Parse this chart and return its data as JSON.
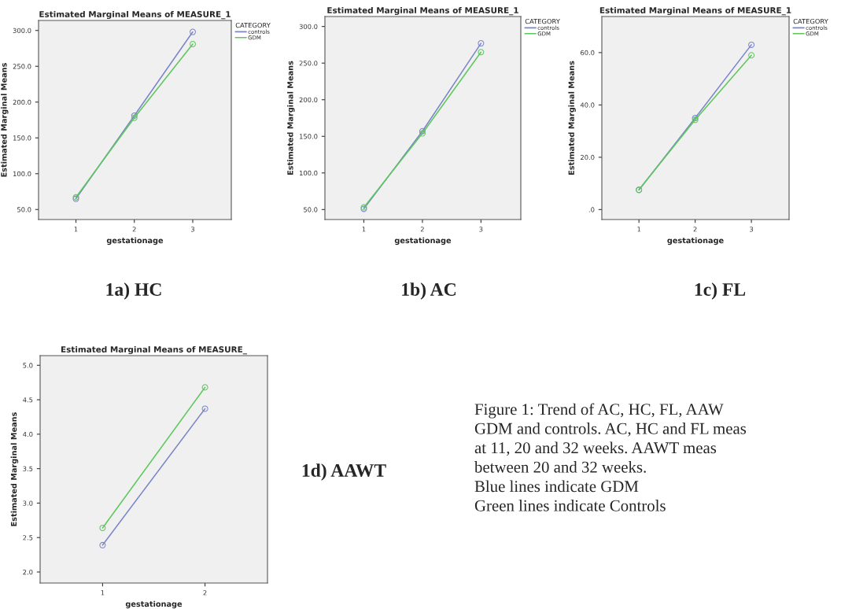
{
  "chart_data": [
    {
      "type": "line",
      "title": "Estimated Marginal Means of MEASURE_1",
      "xlabel": "gestationage",
      "ylabel": "Estimated Marginal Means",
      "legend_title": "CATEGORY",
      "legend": "top right",
      "marker": "circle",
      "line_style": "solid",
      "grid": false,
      "x": [
        1,
        2,
        3
      ],
      "xlim": [
        0.36,
        3.66
      ],
      "xticks": [
        1,
        2,
        3
      ],
      "ylim": [
        36,
        314
      ],
      "yticks": [
        {
          "value": 50,
          "label": "50.0"
        },
        {
          "value": 100,
          "label": "100.0"
        },
        {
          "value": 150,
          "label": "150.0"
        },
        {
          "value": 200,
          "label": "200.0"
        },
        {
          "value": 250,
          "label": "250.0"
        },
        {
          "value": 300,
          "label": "300.0"
        }
      ],
      "series": [
        {
          "name": "controls",
          "color": "#7b85c9",
          "values": [
            65,
            181,
            298
          ]
        },
        {
          "name": "GDM",
          "color": "#5cc85c",
          "values": [
            67,
            178,
            281
          ]
        }
      ],
      "annotations": [
        "1a) HC"
      ]
    },
    {
      "type": "line",
      "title": "Estimated Marginal Means of MEASURE_1",
      "xlabel": "gestationage",
      "ylabel": "Estimated Marginal Means",
      "legend_title": "CATEGORY",
      "legend": "top right",
      "marker": "circle",
      "line_style": "solid",
      "grid": false,
      "x": [
        1,
        2,
        3
      ],
      "xlim": [
        0.335,
        3.68
      ],
      "xticks": [
        1,
        2,
        3
      ],
      "ylim": [
        36.4,
        313.6
      ],
      "yticks": [
        {
          "value": 50,
          "label": "50.0"
        },
        {
          "value": 100,
          "label": "100.0"
        },
        {
          "value": 150,
          "label": "150.0"
        },
        {
          "value": 200,
          "label": "200.0"
        },
        {
          "value": 250,
          "label": "250.0"
        },
        {
          "value": 300,
          "label": "300.0"
        }
      ],
      "series": [
        {
          "name": "controls",
          "color": "#7b85c9",
          "values": [
            51,
            157,
            277
          ]
        },
        {
          "name": "GDM",
          "color": "#5cc85c",
          "values": [
            53,
            154,
            265
          ]
        }
      ],
      "annotations": [
        "1b) AC"
      ]
    },
    {
      "type": "line",
      "title": "Estimated Marginal Means of MEASURE_1",
      "xlabel": "gestationage",
      "ylabel": "Estimated Marginal Means",
      "legend_title": "CATEGORY",
      "legend": "top right",
      "marker": "circle",
      "line_style": "solid",
      "grid": false,
      "x": [
        1,
        2,
        3
      ],
      "xlim": [
        0.34,
        3.67
      ],
      "xticks": [
        1,
        2,
        3
      ],
      "ylim": [
        -3.8,
        73.8
      ],
      "yticks": [
        {
          "value": 0,
          "label": ".0"
        },
        {
          "value": 20,
          "label": "20.0"
        },
        {
          "value": 40,
          "label": "40.0"
        },
        {
          "value": 60,
          "label": "60.0"
        }
      ],
      "series": [
        {
          "name": "controls",
          "color": "#7b85c9",
          "values": [
            7.5,
            35,
            63
          ]
        },
        {
          "name": "GDM",
          "color": "#5cc85c",
          "values": [
            7.6,
            34.3,
            59
          ]
        }
      ],
      "annotations": [
        "1c) FL"
      ]
    },
    {
      "type": "line",
      "title": "Estimated Marginal Means of MEASURE_",
      "xlabel": "gestationage",
      "ylabel": "Estimated Marginal Means",
      "marker": "circle",
      "line_style": "solid",
      "grid": false,
      "x": [
        1,
        2
      ],
      "xlim": [
        0.39,
        2.61
      ],
      "xticks": [
        1,
        2
      ],
      "ylim": [
        1.84,
        5.14
      ],
      "yticks": [
        {
          "value": 2.0,
          "label": "2.0"
        },
        {
          "value": 2.5,
          "label": "2.5"
        },
        {
          "value": 3.0,
          "label": "3.0"
        },
        {
          "value": 3.5,
          "label": "3.5"
        },
        {
          "value": 4.0,
          "label": "4.0"
        },
        {
          "value": 4.5,
          "label": "4.5"
        },
        {
          "value": 5.0,
          "label": "5.0"
        }
      ],
      "series": [
        {
          "color": "#7b85c9",
          "values": [
            2.39,
            4.37
          ]
        },
        {
          "color": "#5cc85c",
          "values": [
            2.64,
            4.68
          ]
        }
      ],
      "annotations": [
        "1d) AAWT",
        "Figure 1: Trend of AC, HC, FL, AAW",
        "GDM and controls. AC, HC and FL meas",
        "at 11, 20 and 32 weeks. AAWT meas",
        "between 20 and 32 weeks.",
        "Blue lines indicate GDM",
        "Green lines indicate Controls"
      ]
    }
  ]
}
